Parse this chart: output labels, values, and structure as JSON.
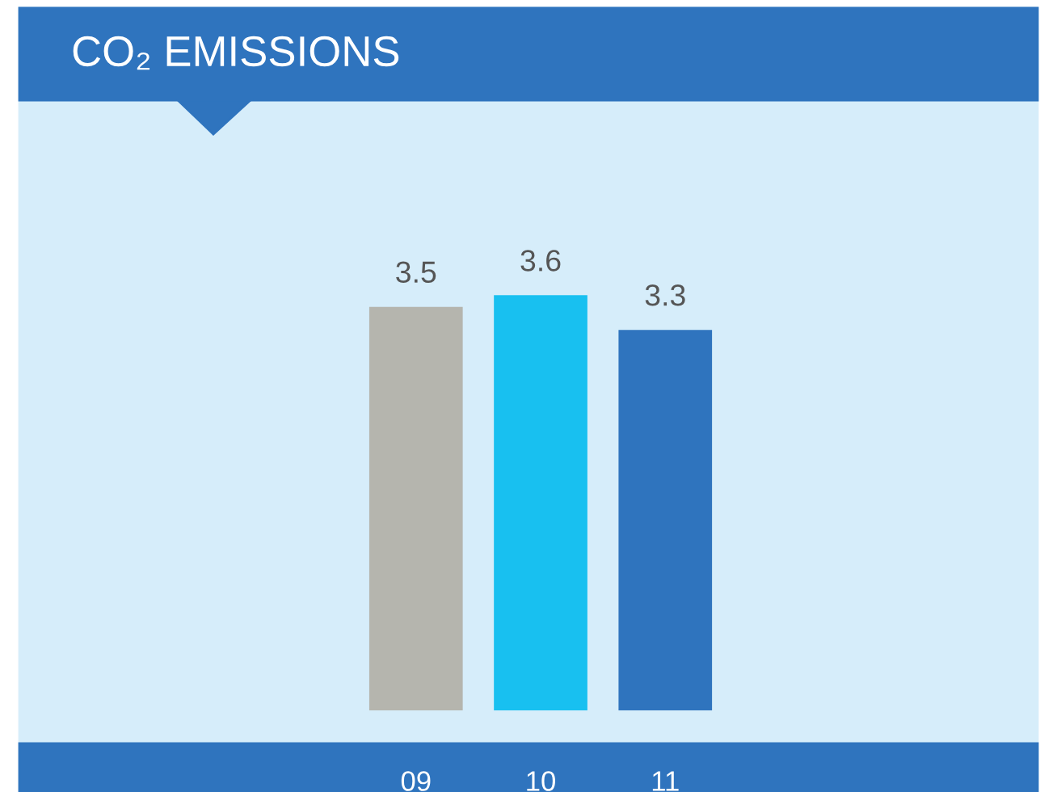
{
  "chart_data": {
    "type": "bar",
    "title": "CO₂ EMISSIONS",
    "categories": [
      "09",
      "10",
      "11"
    ],
    "values": [
      3.5,
      3.6,
      3.3
    ],
    "colors": [
      "#b5b5ae",
      "#18c0f0",
      "#2f74be"
    ],
    "data_labels": true,
    "grid": false,
    "legend": false,
    "tick_labels": "x"
  }
}
